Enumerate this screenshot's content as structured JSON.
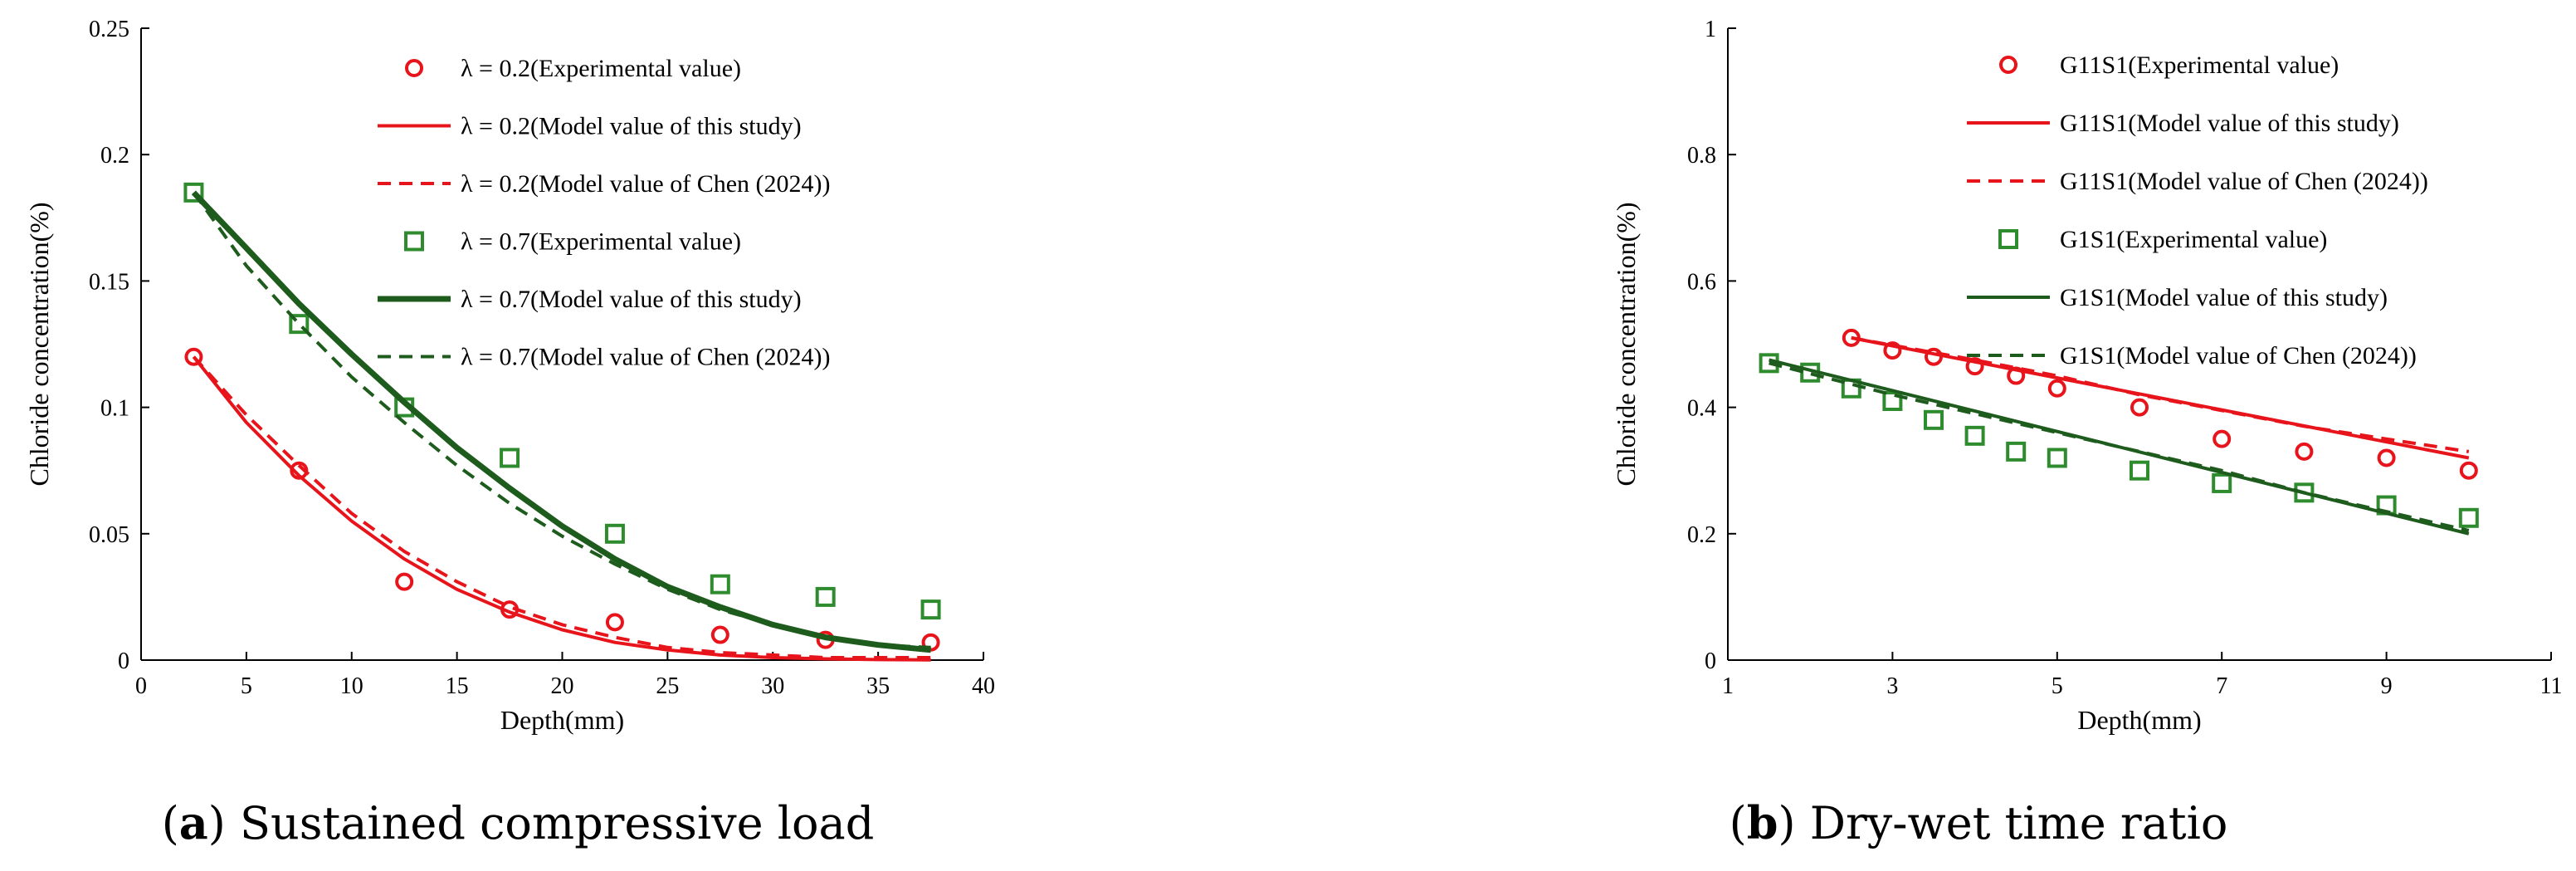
{
  "charts": [
    {
      "caption_letter": "a",
      "caption_text": " Sustained compressive load",
      "chart_data": {
        "type": "line",
        "xlabel": "Depth(mm)",
        "ylabel": "Chloride concentration(%)",
        "xlim": [
          0,
          40
        ],
        "ylim": [
          0,
          0.25
        ],
        "xticks": [
          0,
          5,
          10,
          15,
          20,
          25,
          30,
          35,
          40
        ],
        "yticks": [
          0,
          0.05,
          0.1,
          0.15,
          0.2,
          0.25
        ],
        "xtick_labels": [
          "0",
          "5",
          "10",
          "15",
          "20",
          "25",
          "30",
          "35",
          "40"
        ],
        "ytick_labels": [
          "0",
          "0.05",
          "0.1",
          "0.15",
          "0.2",
          "0.25"
        ],
        "grid": false,
        "legend_position": "top-right",
        "series": [
          {
            "name": "λ = 0.2(Experimental value)",
            "kind": "scatter",
            "marker": "circle",
            "color": "#e8141b",
            "x": [
              2.5,
              7.5,
              12.5,
              17.5,
              22.5,
              27.5,
              32.5,
              37.5
            ],
            "y": [
              0.12,
              0.075,
              0.031,
              0.02,
              0.015,
              0.01,
              0.008,
              0.007
            ]
          },
          {
            "name": "λ = 0.2(Model value of this study)",
            "kind": "line",
            "dash": "solid",
            "width": "normal",
            "color": "#e8141b",
            "x": [
              2.5,
              5,
              7.5,
              10,
              12.5,
              15,
              17.5,
              20,
              22.5,
              25,
              27.5,
              30,
              32.5,
              35,
              37.5
            ],
            "y": [
              0.12,
              0.094,
              0.073,
              0.055,
              0.04,
              0.028,
              0.019,
              0.012,
              0.007,
              0.004,
              0.002,
              0.001,
              0.0005,
              0.0002,
              0.0001
            ]
          },
          {
            "name": "λ = 0.2(Model value of Chen (2024))",
            "kind": "line",
            "dash": "dashed",
            "width": "normal",
            "color": "#e8141b",
            "x": [
              2.5,
              5,
              7.5,
              10,
              12.5,
              15,
              17.5,
              20,
              22.5,
              25,
              27.5,
              30,
              32.5,
              35,
              37.5
            ],
            "y": [
              0.12,
              0.097,
              0.077,
              0.058,
              0.043,
              0.031,
              0.021,
              0.014,
              0.009,
              0.005,
              0.003,
              0.002,
              0.001,
              0.001,
              0.001
            ]
          },
          {
            "name": "λ = 0.7(Experimental value)",
            "kind": "scatter",
            "marker": "square",
            "color": "#2e8b2e",
            "x": [
              2.5,
              7.5,
              12.5,
              17.5,
              22.5,
              27.5,
              32.5,
              37.5
            ],
            "y": [
              0.185,
              0.133,
              0.1,
              0.08,
              0.05,
              0.03,
              0.025,
              0.02
            ]
          },
          {
            "name": "λ = 0.7(Model value of this study)",
            "kind": "line",
            "dash": "solid",
            "width": "thick",
            "color": "#1e5c1e",
            "x": [
              2.5,
              5,
              7.5,
              10,
              12.5,
              15,
              17.5,
              20,
              22.5,
              25,
              27.5,
              30,
              32.5,
              35,
              37.5
            ],
            "y": [
              0.185,
              0.163,
              0.141,
              0.121,
              0.102,
              0.084,
              0.068,
              0.053,
              0.04,
              0.029,
              0.021,
              0.014,
              0.009,
              0.006,
              0.004
            ]
          },
          {
            "name": "λ = 0.7(Model value of Chen (2024))",
            "kind": "line",
            "dash": "dashed",
            "width": "normal",
            "color": "#1e5c1e",
            "x": [
              2.5,
              5,
              7.5,
              10,
              12.5,
              15,
              17.5,
              20,
              22.5,
              25,
              27.5,
              30,
              32.5,
              35,
              37.5
            ],
            "y": [
              0.185,
              0.156,
              0.133,
              0.112,
              0.094,
              0.077,
              0.062,
              0.049,
              0.038,
              0.028,
              0.02,
              0.014,
              0.009,
              0.006,
              0.005
            ]
          }
        ]
      }
    },
    {
      "caption_letter": "b",
      "caption_text": " Dry-wet time ratio",
      "chart_data": {
        "type": "line",
        "xlabel": "Depth(mm)",
        "ylabel": "Chloride concentration(%)",
        "xlim": [
          1,
          11
        ],
        "ylim": [
          0,
          1
        ],
        "xticks": [
          1,
          3,
          5,
          7,
          9,
          11
        ],
        "yticks": [
          0,
          0.2,
          0.4,
          0.6,
          0.8,
          1
        ],
        "xtick_labels": [
          "1",
          "3",
          "5",
          "7",
          "9",
          "11"
        ],
        "ytick_labels": [
          "0",
          "0.2",
          "0.4",
          "0.6",
          "0.8",
          "1"
        ],
        "grid": false,
        "legend_position": "top-right",
        "series": [
          {
            "name": "G11S1(Experimental value)",
            "kind": "scatter",
            "marker": "circle",
            "color": "#e8141b",
            "x": [
              2.5,
              3,
              3.5,
              4,
              4.5,
              5,
              6,
              7,
              8,
              9,
              10
            ],
            "y": [
              0.51,
              0.49,
              0.48,
              0.465,
              0.45,
              0.43,
              0.4,
              0.35,
              0.33,
              0.32,
              0.3
            ]
          },
          {
            "name": "G11S1(Model value of this study)",
            "kind": "line",
            "dash": "solid",
            "width": "normal",
            "color": "#e8141b",
            "x": [
              2.5,
              10
            ],
            "y": [
              0.51,
              0.32
            ]
          },
          {
            "name": "G11S1(Model value of Chen (2024))",
            "kind": "line",
            "dash": "dashed",
            "width": "normal",
            "color": "#e8141b",
            "x": [
              2.5,
              4,
              5,
              6,
              7,
              8,
              9,
              10
            ],
            "y": [
              0.51,
              0.475,
              0.45,
              0.42,
              0.395,
              0.37,
              0.35,
              0.33
            ]
          },
          {
            "name": "G1S1(Experimental value)",
            "kind": "scatter",
            "marker": "square",
            "color": "#2e8b2e",
            "x": [
              1.5,
              2,
              2.5,
              3,
              3.5,
              4,
              4.5,
              5,
              6,
              7,
              8,
              9,
              10
            ],
            "y": [
              0.47,
              0.455,
              0.43,
              0.41,
              0.38,
              0.355,
              0.33,
              0.32,
              0.3,
              0.28,
              0.265,
              0.245,
              0.225
            ]
          },
          {
            "name": "G1S1(Model value of this study)",
            "kind": "line",
            "dash": "solid",
            "width": "normal",
            "color": "#1e5c1e",
            "x": [
              1.5,
              10
            ],
            "y": [
              0.475,
              0.2
            ]
          },
          {
            "name": "G1S1(Model value of Chen (2024))",
            "kind": "line",
            "dash": "dashed",
            "width": "normal",
            "color": "#1e5c1e",
            "x": [
              1.5,
              3,
              5,
              7,
              8,
              9,
              10
            ],
            "y": [
              0.47,
              0.42,
              0.36,
              0.3,
              0.265,
              0.235,
              0.205
            ]
          }
        ]
      }
    }
  ]
}
